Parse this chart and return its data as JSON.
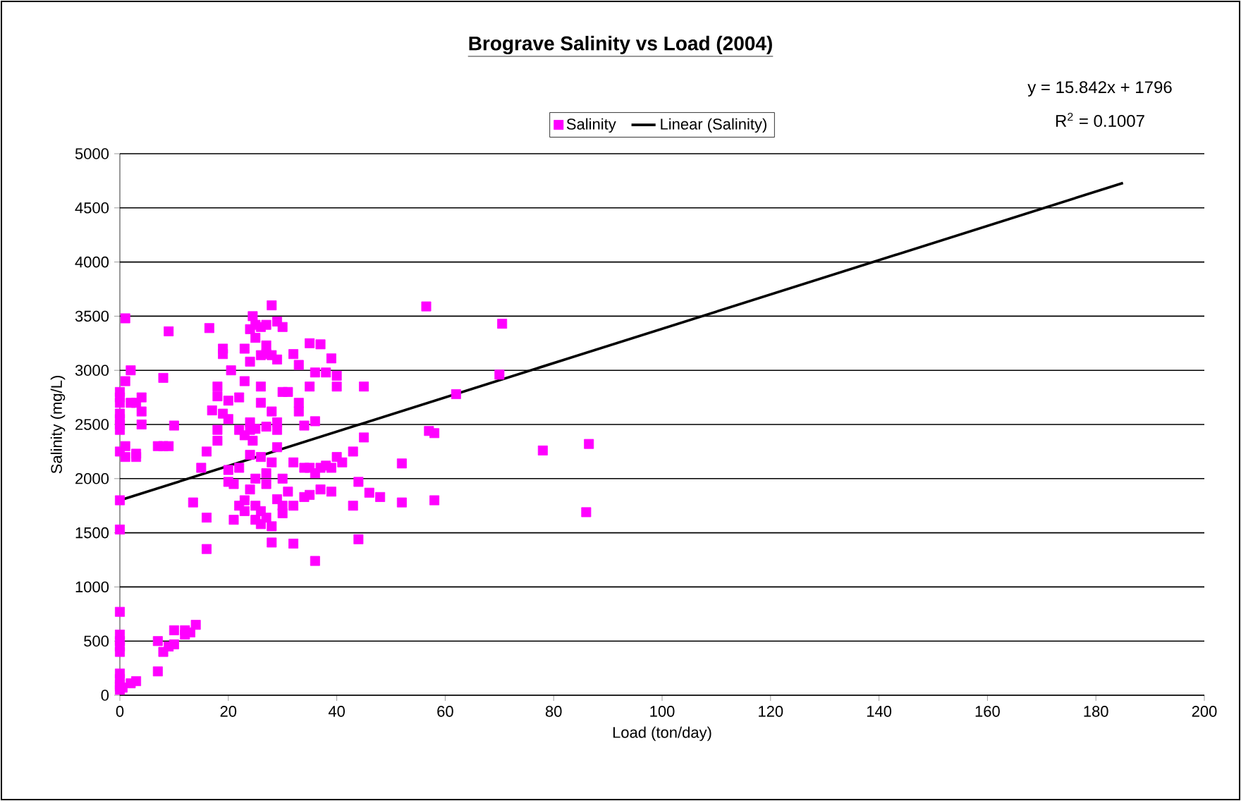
{
  "chart_data": {
    "type": "scatter",
    "title": "Brograve Salinity vs Load (2004)",
    "xlabel": "Load (ton/day)",
    "ylabel": "Salinity (mg/L)",
    "annotations": [
      "y = 15.842x + 1796",
      "R$^{2}$ = 0.1007"
    ],
    "xlim": [
      0,
      200
    ],
    "xticks": [
      0,
      20,
      40,
      60,
      80,
      100,
      120,
      140,
      160,
      180,
      200
    ],
    "ylim": [
      0,
      5000
    ],
    "yticks": [
      0,
      500,
      1000,
      1500,
      2000,
      2500,
      3000,
      3500,
      4000,
      4500,
      5000
    ],
    "grid": "y",
    "legend": "top",
    "series": [
      {
        "name": "Salinity",
        "marker": "square",
        "color": "#ff00ff",
        "x": [
          0,
          0,
          0,
          0,
          0,
          0,
          0,
          0,
          0,
          0,
          0,
          0,
          0,
          0,
          0,
          0,
          0,
          0,
          0,
          0,
          1,
          1,
          1,
          1,
          2,
          2,
          3,
          3,
          3,
          4,
          4,
          4,
          0.5,
          2,
          3,
          7,
          7,
          7,
          8,
          8,
          8,
          9,
          9,
          9,
          10,
          10,
          10,
          12,
          12,
          13,
          14,
          15,
          13.5,
          16,
          16,
          16,
          16.5,
          17,
          18,
          18,
          18,
          18,
          19,
          19,
          19,
          20,
          20,
          20,
          20,
          20.5,
          21,
          21,
          22,
          22,
          22,
          22,
          23,
          23,
          23,
          23,
          23,
          24,
          24,
          24,
          24,
          24,
          24,
          24.5,
          24.5,
          25,
          25,
          25,
          25,
          25,
          25,
          26,
          26,
          26,
          26,
          26,
          26,
          26,
          27,
          27,
          27,
          27,
          27,
          27,
          27,
          28,
          28,
          28,
          28,
          28,
          28,
          29,
          29,
          29,
          29,
          29,
          29,
          30,
          30,
          30,
          30,
          30,
          31,
          31,
          32,
          32,
          32,
          32,
          33,
          33,
          33,
          34,
          34,
          34,
          35,
          35,
          35,
          35,
          36,
          36,
          36,
          36,
          37,
          37,
          37,
          38,
          38,
          39,
          39,
          39,
          40,
          40,
          40,
          41,
          43,
          43,
          44,
          44,
          45,
          45,
          46,
          48,
          52,
          52,
          56.5,
          57,
          58,
          58,
          62,
          70,
          70.5,
          78,
          86,
          86.5
        ],
        "values": [
          2800,
          2750,
          2700,
          2600,
          2550,
          2500,
          2450,
          2250,
          1800,
          1530,
          770,
          560,
          500,
          450,
          400,
          200,
          150,
          100,
          80,
          50,
          3480,
          2900,
          2300,
          2200,
          3000,
          2700,
          2200,
          2230,
          2700,
          2750,
          2500,
          2620,
          70,
          110,
          130,
          2300,
          500,
          220,
          2930,
          2300,
          400,
          3360,
          2300,
          450,
          2490,
          600,
          470,
          560,
          600,
          580,
          650,
          2100,
          1780,
          1350,
          1640,
          2250,
          3390,
          2630,
          2850,
          2760,
          2450,
          2350,
          3200,
          3150,
          2600,
          2550,
          1970,
          2080,
          2720,
          3000,
          1950,
          1620,
          2100,
          2450,
          1750,
          2750,
          3200,
          2900,
          2400,
          1800,
          1700,
          3380,
          3080,
          2520,
          2450,
          2220,
          1900,
          3500,
          2350,
          3300,
          3420,
          2000,
          1620,
          1750,
          2460,
          3400,
          3140,
          2850,
          2700,
          2200,
          1580,
          1700,
          3420,
          3230,
          3150,
          2480,
          2050,
          1950,
          1640,
          3600,
          3140,
          2620,
          2150,
          1410,
          1560,
          3450,
          3100,
          2520,
          2450,
          2290,
          1810,
          3400,
          2800,
          2000,
          1680,
          1750,
          2800,
          1880,
          3150,
          2150,
          1400,
          1750,
          3050,
          2620,
          2700,
          2100,
          2490,
          1830,
          2850,
          3250,
          2100,
          1850,
          1240,
          2050,
          2530,
          2980,
          3240,
          1900,
          2100,
          2120,
          2980,
          3110,
          2100,
          1880,
          2200,
          2850,
          2950,
          2150,
          2250,
          1750,
          1440,
          1970,
          2850,
          2380,
          1870,
          1830,
          2140,
          1780,
          3590,
          2440,
          1800,
          2420,
          2780,
          2960,
          3430,
          2260,
          1690,
          2320
        ]
      },
      {
        "name": "Linear (Salinity)",
        "type": "line",
        "color": "#000000",
        "x": [
          0,
          185
        ],
        "values": [
          1800,
          4730
        ],
        "marker": "none"
      }
    ]
  }
}
